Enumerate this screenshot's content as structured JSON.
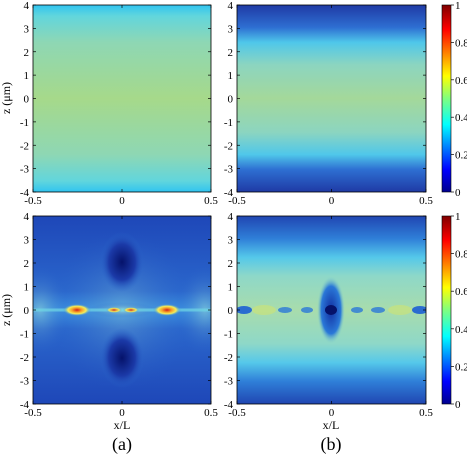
{
  "chart_data": {
    "type": "heatmap",
    "colorscale": [
      "#00008f",
      "#0000ff",
      "#007fff",
      "#00ffff",
      "#7fff7f",
      "#ffff00",
      "#ff7f00",
      "#ff0000",
      "#7f0000"
    ],
    "colorbar": {
      "ticks": [
        "0",
        "0.2",
        "0.4",
        "0.6",
        "0.8",
        "1"
      ],
      "range": [
        0,
        1
      ]
    },
    "panels": [
      {
        "id": "a-top",
        "xlabel": "",
        "ylabel": "z (μm)",
        "x_ticks": [
          "-0.5",
          "0",
          "0.5"
        ],
        "y_ticks": [
          "4",
          "3",
          "2",
          "1",
          "0",
          "-1",
          "-2",
          "-3",
          "-4"
        ],
        "xlim": [
          -0.5,
          0.5
        ],
        "ylim": [
          -4,
          4
        ],
        "colorbar": false
      },
      {
        "id": "b-top",
        "xlabel": "",
        "ylabel": "",
        "x_ticks": [
          "-0.5",
          "0",
          "0.5"
        ],
        "y_ticks": [
          "4",
          "3",
          "2",
          "1",
          "0",
          "-1",
          "-2",
          "-3",
          "-4"
        ],
        "xlim": [
          -0.5,
          0.5
        ],
        "ylim": [
          -4,
          4
        ],
        "colorbar": true
      },
      {
        "id": "a-bottom",
        "xlabel": "x/L",
        "ylabel": "z (μm)",
        "x_ticks": [
          "-0.5",
          "0",
          "0.5"
        ],
        "y_ticks": [
          "4",
          "3",
          "2",
          "1",
          "0",
          "-1",
          "-2",
          "-3",
          "-4"
        ],
        "xlim": [
          -0.5,
          0.5
        ],
        "ylim": [
          -4,
          4
        ],
        "colorbar": false
      },
      {
        "id": "b-bottom",
        "xlabel": "x/L",
        "ylabel": "",
        "x_ticks": [
          "-0.5",
          "0",
          "0.5"
        ],
        "y_ticks": [
          "4",
          "3",
          "2",
          "1",
          "0",
          "-1",
          "-2",
          "-3",
          "-4"
        ],
        "xlim": [
          -0.5,
          0.5
        ],
        "ylim": [
          -4,
          4
        ],
        "colorbar": true
      }
    ],
    "panel_labels": [
      "(a)",
      "(b)"
    ]
  }
}
